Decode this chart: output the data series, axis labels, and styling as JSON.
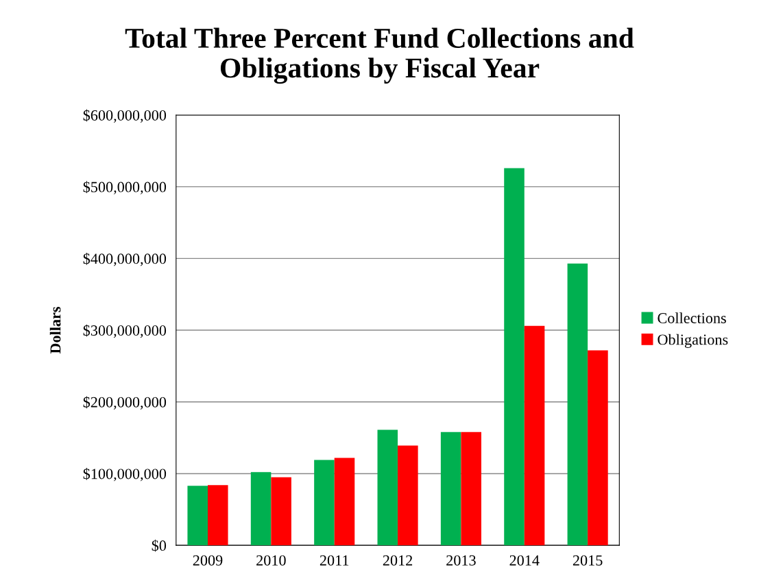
{
  "chart_data": {
    "type": "bar",
    "title": "Total Three Percent Fund Collections and\nObligations by Fiscal Year",
    "ylabel": "Dollars",
    "categories": [
      "2009",
      "2010",
      "2011",
      "2012",
      "2013",
      "2014",
      "2015"
    ],
    "series": [
      {
        "name": "Collections",
        "color": "#00b050",
        "values": [
          83000000,
          102000000,
          119000000,
          161000000,
          158000000,
          526000000,
          393000000
        ]
      },
      {
        "name": "Obligations",
        "color": "#ff0000",
        "values": [
          84000000,
          95000000,
          122000000,
          139000000,
          158000000,
          306000000,
          272000000
        ]
      }
    ],
    "ylim": [
      0,
      600000000
    ],
    "yticks": [
      {
        "value": 0,
        "label": "$0"
      },
      {
        "value": 100000000,
        "label": "$100,000,000"
      },
      {
        "value": 200000000,
        "label": "$200,000,000"
      },
      {
        "value": 300000000,
        "label": "$300,000,000"
      },
      {
        "value": 400000000,
        "label": "$400,000,000"
      },
      {
        "value": 500000000,
        "label": "$500,000,000"
      },
      {
        "value": 600000000,
        "label": "$600,000,000"
      }
    ],
    "grid": "y",
    "legend": "right"
  }
}
